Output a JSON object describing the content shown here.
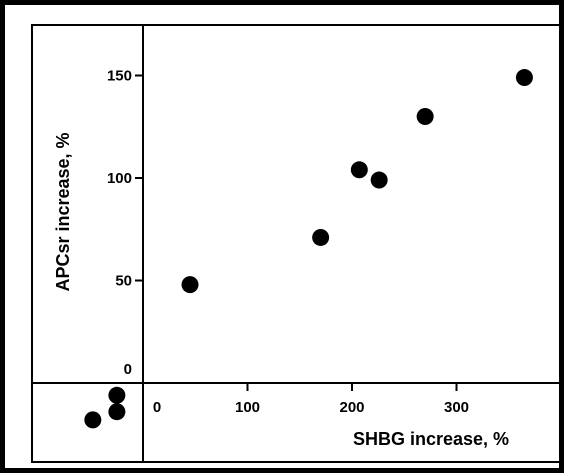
{
  "chart_data": {
    "type": "scatter",
    "title": "",
    "xlabel": "SHBG increase, %",
    "ylabel": "APCsr increase, %",
    "x_ticks": [
      0,
      100,
      200,
      300
    ],
    "y_ticks": [
      0,
      50,
      100,
      150
    ],
    "xlim": [
      -50,
      355
    ],
    "ylim": [
      -38,
      172
    ],
    "grid": false,
    "legend": "none",
    "marker_color": "#000000",
    "series": [
      {
        "points": [
          {
            "x": 45,
            "y": 48
          },
          {
            "x": 170,
            "y": 71
          },
          {
            "x": 207,
            "y": 104
          },
          {
            "x": 226,
            "y": 99
          },
          {
            "x": 270,
            "y": 130
          },
          {
            "x": 365,
            "y": 149
          },
          {
            "x": -48,
            "y": -18
          },
          {
            "x": -25,
            "y": -6
          },
          {
            "x": -25,
            "y": -14
          }
        ]
      }
    ]
  }
}
